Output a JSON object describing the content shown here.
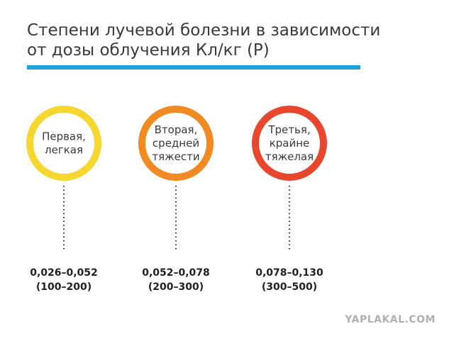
{
  "header": {
    "title_lines": [
      "Степени лучевой болезни в зависимости",
      "от дозы облучения Кл/кг (Р)"
    ],
    "accent_color": "#1ea0dc"
  },
  "items": [
    {
      "label_lines": [
        "Первая,",
        "легкая"
      ],
      "dose_lines": [
        "0,026–0,052",
        "(100–200)"
      ],
      "color": "#f6d730"
    },
    {
      "label_lines": [
        "Вторая,",
        "средней",
        "тяжести"
      ],
      "dose_lines": [
        "0,052–0,078",
        "(200–300)"
      ],
      "color": "#f18a22"
    },
    {
      "label_lines": [
        "Третья,",
        "крайне",
        "тяжелая"
      ],
      "dose_lines": [
        "0,078–0,130",
        "(300–500)"
      ],
      "color": "#e8472d"
    }
  ],
  "watermark": "YAPLAKAL.COM"
}
